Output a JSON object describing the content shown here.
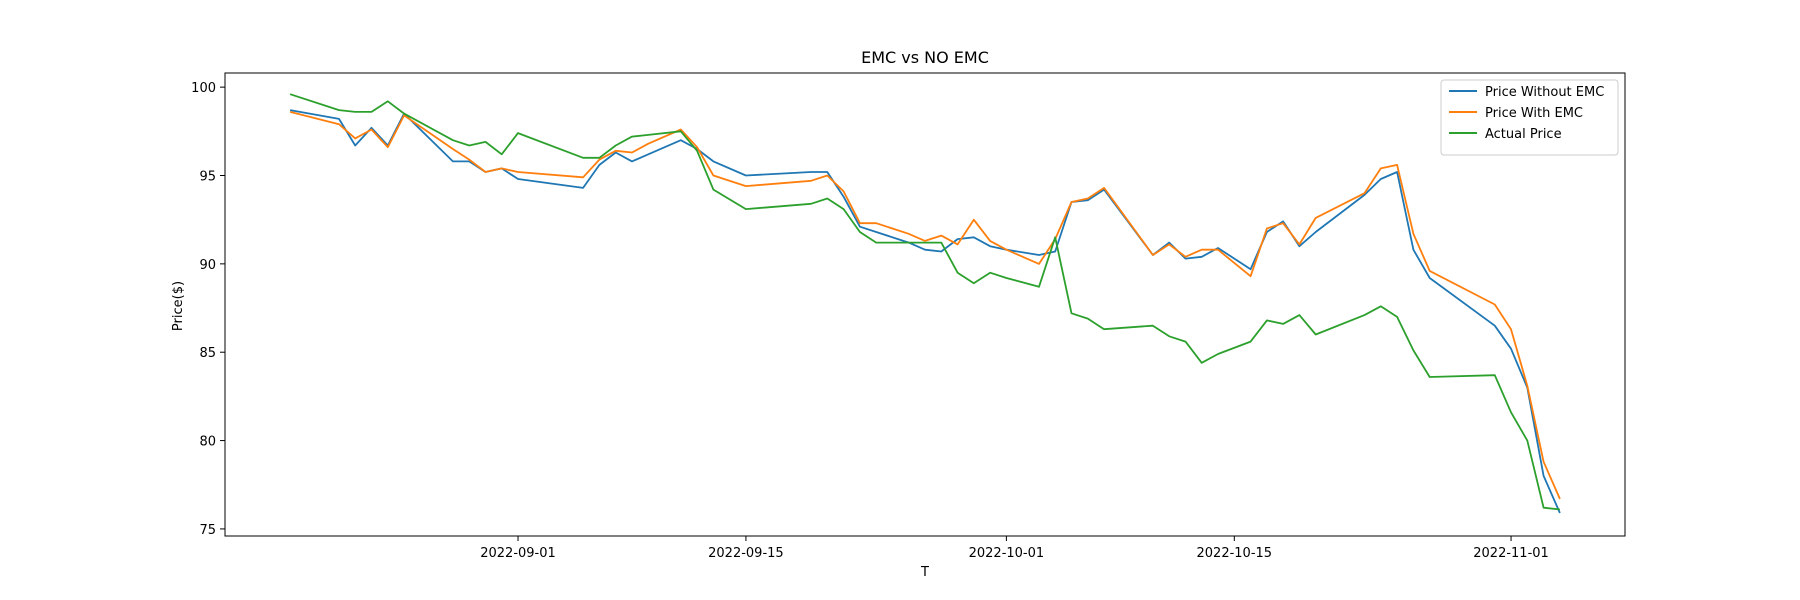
{
  "chart_data": {
    "type": "line",
    "title": "EMC vs NO EMC",
    "xlabel": "T",
    "ylabel": "Price($)",
    "xlim": [
      "2022-08-14",
      "2022-11-08"
    ],
    "ylim": [
      74.6,
      100.8
    ],
    "x_ticks": [
      "2022-09-01",
      "2022-09-15",
      "2022-10-01",
      "2022-10-15",
      "2022-11-01"
    ],
    "y_ticks": [
      75,
      80,
      85,
      90,
      95,
      100
    ],
    "grid": false,
    "legend_position": "top-right",
    "x": [
      "2022-08-18",
      "2022-08-21",
      "2022-08-22",
      "2022-08-23",
      "2022-08-24",
      "2022-08-25",
      "2022-08-28",
      "2022-08-29",
      "2022-08-30",
      "2022-08-31",
      "2022-09-01",
      "2022-09-05",
      "2022-09-06",
      "2022-09-07",
      "2022-09-08",
      "2022-09-09",
      "2022-09-11",
      "2022-09-12",
      "2022-09-13",
      "2022-09-15",
      "2022-09-19",
      "2022-09-20",
      "2022-09-21",
      "2022-09-22",
      "2022-09-23",
      "2022-09-25",
      "2022-09-26",
      "2022-09-27",
      "2022-09-28",
      "2022-09-29",
      "2022-09-30",
      "2022-10-01",
      "2022-10-03",
      "2022-10-04",
      "2022-10-05",
      "2022-10-06",
      "2022-10-07",
      "2022-10-10",
      "2022-10-11",
      "2022-10-12",
      "2022-10-13",
      "2022-10-14",
      "2022-10-16",
      "2022-10-17",
      "2022-10-18",
      "2022-10-19",
      "2022-10-20",
      "2022-10-23",
      "2022-10-24",
      "2022-10-25",
      "2022-10-26",
      "2022-10-27",
      "2022-10-31",
      "2022-11-01",
      "2022-11-02",
      "2022-11-03",
      "2022-11-04"
    ],
    "series": [
      {
        "name": "Price Without EMC",
        "color": "#1f77b4",
        "values": [
          98.7,
          98.2,
          96.7,
          97.7,
          96.7,
          98.5,
          95.8,
          95.8,
          95.2,
          95.4,
          94.8,
          94.3,
          95.6,
          96.3,
          95.8,
          96.2,
          97.0,
          96.5,
          95.8,
          95.0,
          95.2,
          95.2,
          93.8,
          92.1,
          91.8,
          91.2,
          90.8,
          90.7,
          91.4,
          91.5,
          91.0,
          90.8,
          90.5,
          90.7,
          93.5,
          93.6,
          94.2,
          90.5,
          91.2,
          90.3,
          90.4,
          90.9,
          89.7,
          91.8,
          92.4,
          91.0,
          91.8,
          93.9,
          94.8,
          95.2,
          90.8,
          89.2,
          86.5,
          85.2,
          83.0,
          78.0,
          75.9
        ]
      },
      {
        "name": "Price With EMC",
        "color": "#ff7f0e",
        "values": [
          98.6,
          97.9,
          97.1,
          97.6,
          96.6,
          98.4,
          96.5,
          95.9,
          95.2,
          95.4,
          95.2,
          94.9,
          95.9,
          96.4,
          96.3,
          96.8,
          97.6,
          96.6,
          95.0,
          94.4,
          94.7,
          95.0,
          94.1,
          92.3,
          92.3,
          91.7,
          91.3,
          91.6,
          91.1,
          92.5,
          91.3,
          90.8,
          90.0,
          91.4,
          93.5,
          93.7,
          94.3,
          90.5,
          91.1,
          90.4,
          90.8,
          90.8,
          89.3,
          92.0,
          92.3,
          91.1,
          92.6,
          94.0,
          95.4,
          95.6,
          91.7,
          89.6,
          87.7,
          86.3,
          83.1,
          78.8,
          76.7
        ]
      },
      {
        "name": "Actual Price",
        "color": "#2ca02c",
        "values": [
          99.6,
          98.7,
          98.6,
          98.6,
          99.2,
          98.5,
          97.0,
          96.7,
          96.9,
          96.2,
          97.4,
          96.0,
          96.0,
          96.7,
          97.2,
          97.3,
          97.5,
          96.4,
          94.2,
          93.1,
          93.4,
          93.7,
          93.1,
          91.8,
          91.2,
          91.2,
          91.2,
          91.2,
          89.5,
          88.9,
          89.5,
          89.2,
          88.7,
          91.5,
          87.2,
          86.9,
          86.3,
          86.5,
          85.9,
          85.6,
          84.4,
          84.9,
          85.6,
          86.8,
          86.6,
          87.1,
          86.0,
          87.1,
          87.6,
          87.0,
          85.1,
          83.6,
          83.7,
          81.6,
          80.0,
          76.2,
          76.1
        ]
      }
    ]
  }
}
